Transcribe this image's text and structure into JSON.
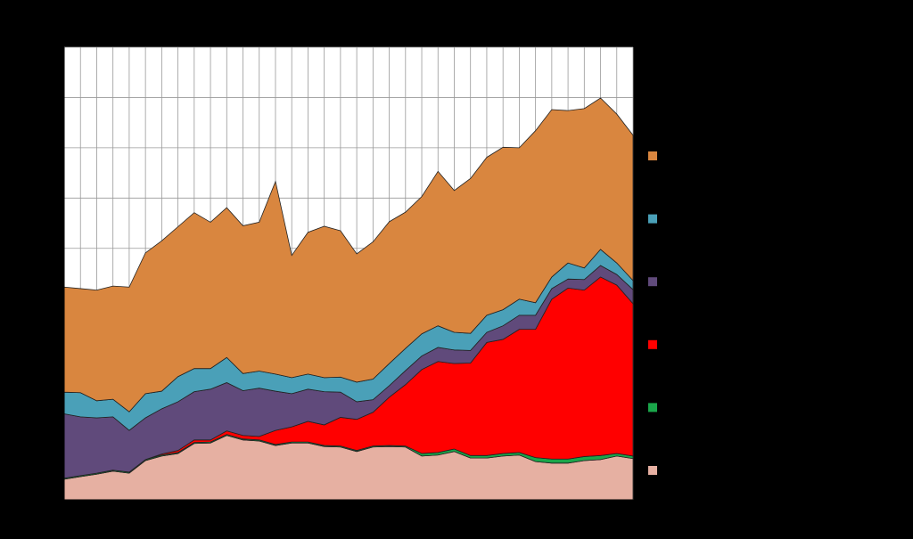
{
  "chart_data": {
    "type": "stacked-area",
    "categories": [
      null,
      null,
      null,
      null,
      null,
      null,
      null,
      null,
      null,
      null,
      null,
      null,
      null,
      null,
      null,
      null,
      null,
      null,
      null,
      null,
      null,
      null,
      null,
      null,
      null,
      null,
      null,
      null,
      null,
      null,
      null,
      null,
      null,
      null,
      null,
      null
    ],
    "ylim": [
      0,
      9
    ],
    "yticks": [
      0,
      1,
      2,
      3,
      4,
      5,
      6,
      7,
      8,
      9
    ],
    "grid": true,
    "legend": "right",
    "series": [
      {
        "color": "#e6b0a2",
        "values": [
          0.41,
          0.46,
          0.51,
          0.57,
          0.53,
          0.78,
          0.87,
          0.92,
          1.12,
          1.13,
          1.28,
          1.19,
          1.17,
          1.08,
          1.13,
          1.13,
          1.06,
          1.05,
          0.96,
          1.05,
          1.06,
          1.05,
          0.87,
          0.89,
          0.96,
          0.83,
          0.83,
          0.87,
          0.89,
          0.76,
          0.73,
          0.73,
          0.78,
          0.8,
          0.87,
          0.82
        ]
      },
      {
        "color": "#1aa64a",
        "values": [
          0.02,
          0.02,
          0.02,
          0.02,
          0.02,
          0.02,
          0.02,
          0.02,
          0.02,
          0.02,
          0.02,
          0.02,
          0.02,
          0.02,
          0.02,
          0.02,
          0.02,
          0.02,
          0.02,
          0.02,
          0.02,
          0.02,
          0.05,
          0.05,
          0.05,
          0.05,
          0.05,
          0.05,
          0.05,
          0.08,
          0.08,
          0.08,
          0.08,
          0.08,
          0.05,
          0.05
        ]
      },
      {
        "color": "#ff0000",
        "values": [
          0,
          0,
          0,
          0,
          0,
          0,
          0.02,
          0.04,
          0.05,
          0.04,
          0.07,
          0.07,
          0.07,
          0.28,
          0.3,
          0.41,
          0.41,
          0.57,
          0.62,
          0.67,
          0.96,
          1.22,
          1.67,
          1.81,
          1.7,
          1.84,
          2.25,
          2.27,
          2.45,
          2.55,
          3.18,
          3.4,
          3.31,
          3.55,
          3.35,
          3.03
        ]
      },
      {
        "color": "#604a7b",
        "values": [
          1.28,
          1.17,
          1.1,
          1.06,
          0.83,
          0.83,
          0.9,
          0.97,
          0.96,
          1.01,
          0.96,
          0.89,
          0.96,
          0.78,
          0.66,
          0.64,
          0.66,
          0.5,
          0.35,
          0.25,
          0.23,
          0.28,
          0.27,
          0.28,
          0.27,
          0.25,
          0.2,
          0.27,
          0.28,
          0.28,
          0.21,
          0.18,
          0.21,
          0.23,
          0.21,
          0.28
        ]
      },
      {
        "color": "#4aa0b8",
        "values": [
          0.43,
          0.48,
          0.34,
          0.35,
          0.37,
          0.48,
          0.35,
          0.5,
          0.46,
          0.41,
          0.5,
          0.34,
          0.34,
          0.34,
          0.32,
          0.3,
          0.28,
          0.3,
          0.39,
          0.41,
          0.44,
          0.44,
          0.44,
          0.43,
          0.35,
          0.34,
          0.34,
          0.32,
          0.32,
          0.25,
          0.23,
          0.32,
          0.23,
          0.32,
          0.23,
          0.18
        ]
      },
      {
        "color": "#d9863f",
        "values": [
          2.09,
          2.07,
          2.2,
          2.25,
          2.48,
          2.8,
          2.99,
          2.98,
          3.1,
          2.91,
          2.98,
          2.94,
          2.96,
          3.83,
          2.43,
          2.82,
          3.01,
          2.91,
          2.55,
          2.73,
          2.82,
          2.71,
          2.73,
          3.07,
          2.82,
          3.08,
          3.14,
          3.23,
          3.01,
          3.42,
          3.33,
          3.03,
          3.17,
          3.01,
          2.96,
          2.89
        ]
      }
    ]
  }
}
